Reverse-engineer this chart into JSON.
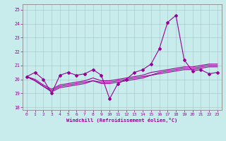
{
  "title": "",
  "xlabel": "Windchill (Refroidissement éolien,°C)",
  "bg_color": "#c8ecec",
  "line_color": "#990099",
  "grid_color": "#aacccc",
  "spine_color": "#888888",
  "x_ticks": [
    0,
    1,
    2,
    3,
    4,
    5,
    6,
    7,
    8,
    9,
    10,
    11,
    12,
    13,
    14,
    15,
    16,
    17,
    18,
    19,
    20,
    21,
    22,
    23
  ],
  "y_ticks": [
    18,
    19,
    20,
    21,
    22,
    23,
    24,
    25
  ],
  "ylim": [
    17.8,
    25.4
  ],
  "xlim": [
    -0.5,
    23.5
  ],
  "series1": [
    20.2,
    20.5,
    20.0,
    19.0,
    20.3,
    20.5,
    20.3,
    20.4,
    20.7,
    20.3,
    18.6,
    19.7,
    20.0,
    20.5,
    20.7,
    21.1,
    22.2,
    24.1,
    24.6,
    21.4,
    20.6,
    20.7,
    20.4,
    20.5
  ],
  "series2": [
    20.2,
    19.9,
    19.5,
    19.1,
    19.4,
    19.5,
    19.6,
    19.7,
    19.9,
    19.7,
    19.7,
    19.8,
    19.9,
    20.0,
    20.1,
    20.3,
    20.4,
    20.5,
    20.6,
    20.7,
    20.7,
    20.8,
    20.9,
    20.9
  ],
  "series3": [
    20.2,
    19.9,
    19.5,
    19.2,
    19.5,
    19.6,
    19.7,
    19.8,
    19.9,
    19.8,
    19.8,
    19.9,
    20.0,
    20.1,
    20.2,
    20.3,
    20.5,
    20.6,
    20.7,
    20.8,
    20.8,
    20.9,
    21.0,
    21.0
  ],
  "series4": [
    20.2,
    20.0,
    19.6,
    19.3,
    19.6,
    19.7,
    19.8,
    19.9,
    20.1,
    19.9,
    19.9,
    20.0,
    20.1,
    20.2,
    20.3,
    20.5,
    20.6,
    20.7,
    20.8,
    20.9,
    20.9,
    21.0,
    21.1,
    21.1
  ],
  "xlabel_fontsize": 5.0,
  "tick_fontsize": 4.5,
  "lw_main": 0.8,
  "lw_trend": 0.8,
  "marker_size": 2.0
}
